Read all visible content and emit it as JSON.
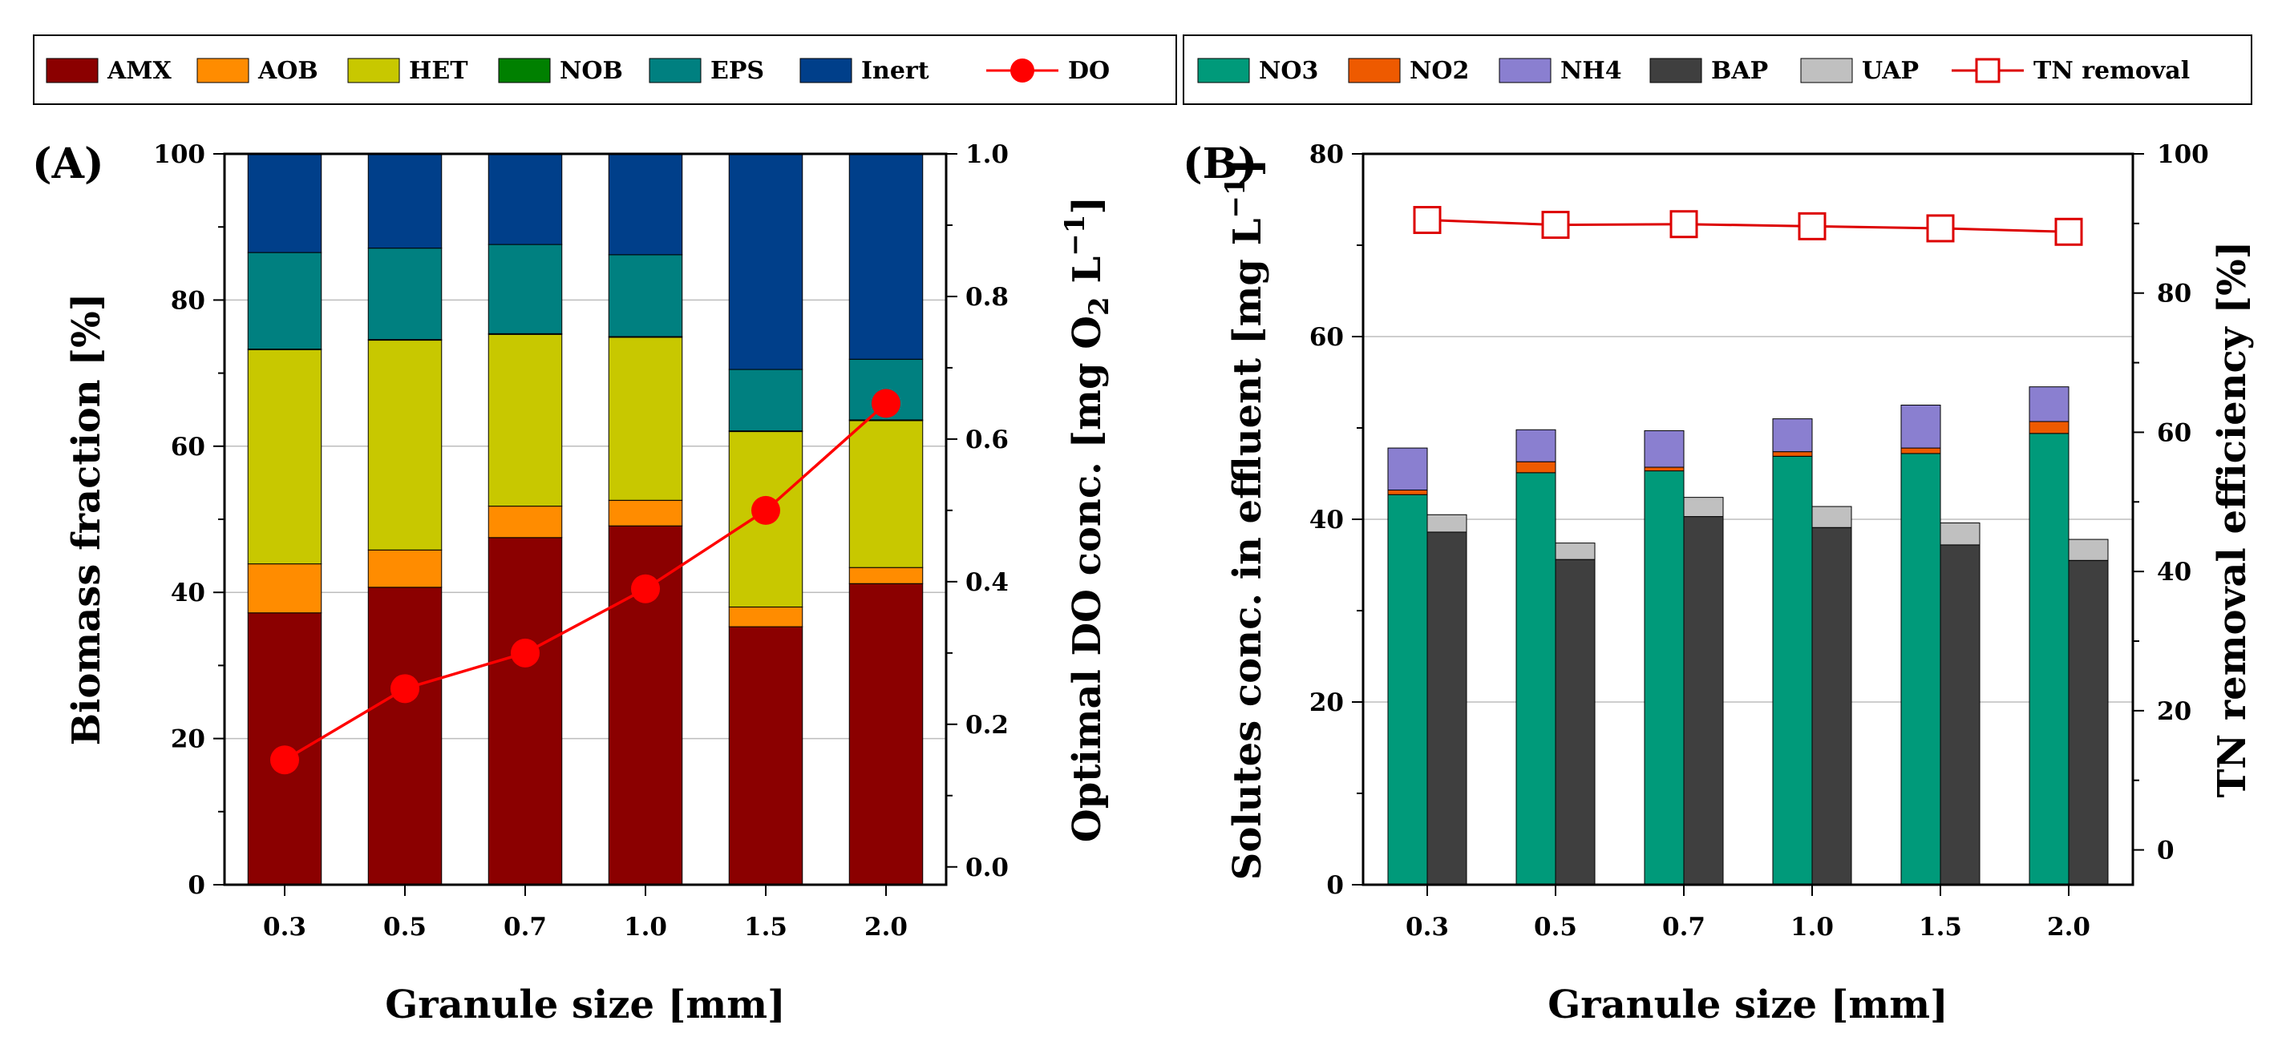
{
  "chart_data": [
    {
      "type": "bar",
      "stacked": true,
      "panel_label": "(A)",
      "xlabel": "Granule size [mm]",
      "ylabel": "Biomass fraction [%]",
      "y2label": "Optimal DO conc. [mg O2 L−1]",
      "categories": [
        "0.3",
        "0.5",
        "0.7",
        "1.0",
        "1.5",
        "2.0"
      ],
      "ylim": [
        0,
        100
      ],
      "yticks": [
        "0",
        "20",
        "40",
        "60",
        "80",
        "100"
      ],
      "y2lim": [
        -0.025,
        1.0
      ],
      "y2ticks": [
        "0.0",
        "0.2",
        "0.4",
        "0.6",
        "0.8",
        "1.0"
      ],
      "grid": true,
      "legend": [
        "AMX",
        "AOB",
        "HET",
        "NOB",
        "EPS",
        "Inert",
        "DO"
      ],
      "series": [
        {
          "name": "AMX",
          "color": "#8b0000",
          "values": [
            37.2,
            40.7,
            47.5,
            49.1,
            35.3,
            41.2
          ]
        },
        {
          "name": "AOB",
          "color": "#ff8c00",
          "values": [
            6.7,
            5.1,
            4.3,
            3.5,
            2.7,
            2.2
          ]
        },
        {
          "name": "HET",
          "color": "#c8c800",
          "values": [
            29.3,
            28.7,
            23.5,
            22.3,
            24.0,
            20.1
          ]
        },
        {
          "name": "NOB",
          "color": "#008000",
          "values": [
            0.1,
            0.1,
            0.1,
            0.1,
            0.1,
            0.1
          ]
        },
        {
          "name": "EPS",
          "color": "#008080",
          "values": [
            13.2,
            12.5,
            12.2,
            11.2,
            8.4,
            8.3
          ]
        },
        {
          "name": "Inert",
          "color": "#003f8a",
          "values": [
            13.5,
            12.9,
            12.4,
            13.8,
            29.5,
            28.1
          ]
        }
      ],
      "line": {
        "name": "DO",
        "color": "#ff0000",
        "values": [
          0.15,
          0.25,
          0.3,
          0.39,
          0.5,
          0.65
        ]
      }
    },
    {
      "type": "bar",
      "stacked": true,
      "panel_label": "(B)",
      "xlabel": "Granule size [mm]",
      "ylabel": "Solutes conc. in effluent [mg L−1]",
      "y2label": "TN removal efficiency [%]",
      "categories": [
        "0.3",
        "0.5",
        "0.7",
        "1.0",
        "1.5",
        "2.0"
      ],
      "ylim": [
        0,
        80
      ],
      "yticks": [
        "0",
        "20",
        "40",
        "60",
        "80"
      ],
      "y2lim": [
        -5,
        100
      ],
      "y2ticks": [
        "0",
        "20",
        "40",
        "60",
        "80",
        "100"
      ],
      "grid": true,
      "legend": [
        "NO3",
        "NO2",
        "NH4",
        "BAP",
        "UAP",
        "TN removal"
      ],
      "series_left": [
        {
          "name": "NO3",
          "color": "#009a7a",
          "values": [
            42.7,
            45.1,
            45.3,
            46.9,
            47.2,
            49.4
          ]
        },
        {
          "name": "NO2",
          "color": "#ee5a00",
          "values": [
            0.5,
            1.2,
            0.4,
            0.5,
            0.6,
            1.3
          ]
        },
        {
          "name": "NH4",
          "color": "#8a7fd0",
          "values": [
            4.6,
            3.5,
            4.0,
            3.6,
            4.7,
            3.8
          ]
        }
      ],
      "series_right": [
        {
          "name": "BAP",
          "color": "#3f3f3f",
          "values": [
            38.6,
            35.6,
            40.3,
            39.1,
            37.2,
            35.5
          ]
        },
        {
          "name": "UAP",
          "color": "#c0c0c0",
          "values": [
            1.9,
            1.8,
            2.1,
            2.3,
            2.4,
            2.3
          ]
        }
      ],
      "line": {
        "name": "TN removal",
        "color": "#dd0000",
        "values": [
          90.5,
          89.8,
          89.9,
          89.6,
          89.3,
          88.8
        ]
      }
    }
  ]
}
